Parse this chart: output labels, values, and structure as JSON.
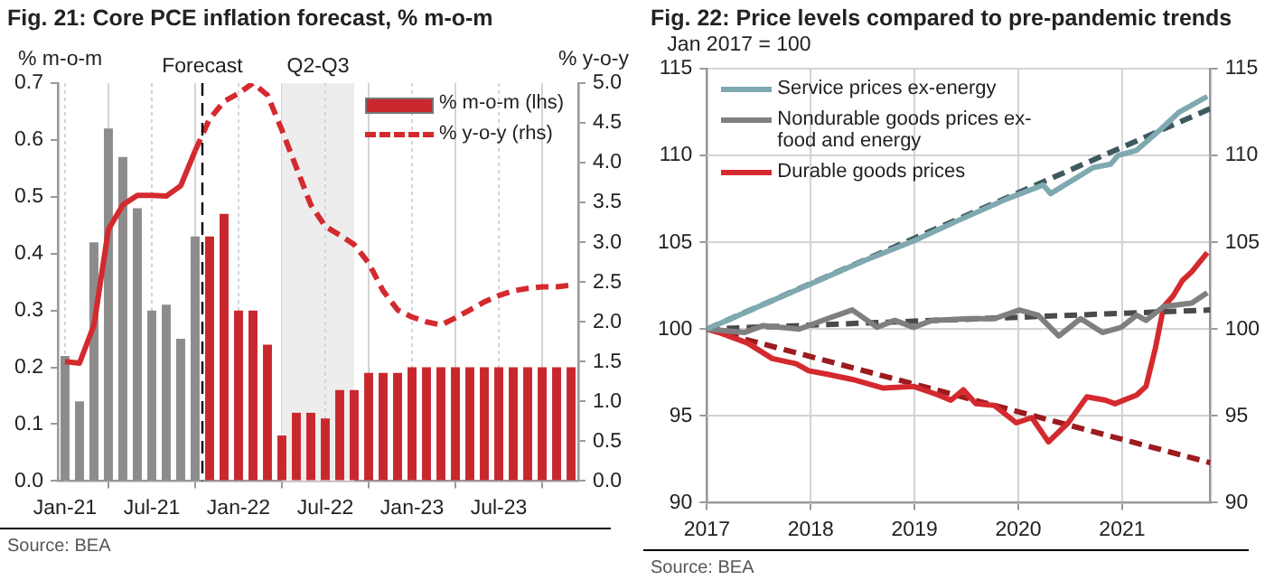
{
  "chart_data": [
    {
      "type": "bar",
      "title": "Fig. 21: Core PCE inflation forecast, % m-o-m",
      "ylabel": "% m-o-m",
      "y2label": "% y-o-y",
      "x": [
        "2021-01",
        "2021-02",
        "2021-03",
        "2021-04",
        "2021-05",
        "2021-06",
        "2021-07",
        "2021-08",
        "2021-09",
        "2021-10",
        "2021-11",
        "2021-12",
        "2022-01",
        "2022-02",
        "2022-03",
        "2022-04",
        "2022-05",
        "2022-06",
        "2022-07",
        "2022-08",
        "2022-09",
        "2022-10",
        "2022-11",
        "2022-12",
        "2023-01",
        "2023-02",
        "2023-03",
        "2023-04",
        "2023-05",
        "2023-06",
        "2023-07",
        "2023-08",
        "2023-09",
        "2023-10",
        "2023-11",
        "2023-12"
      ],
      "series": [
        {
          "name": "% m-o-m (lhs)",
          "type": "bar",
          "color": "#c8282d",
          "colors": [
            "#8c8c8c",
            "#8c8c8c",
            "#8c8c8c",
            "#8c8c8c",
            "#8c8c8c",
            "#8c8c8c",
            "#8c8c8c",
            "#8c8c8c",
            "#8c8c8c",
            "#8c8c8c",
            "#c8282d",
            "#c8282d",
            "#c8282d",
            "#c8282d",
            "#c8282d",
            "#c8282d",
            "#c8282d",
            "#c8282d",
            "#c8282d",
            "#c8282d",
            "#c8282d",
            "#c8282d",
            "#c8282d",
            "#c8282d",
            "#c8282d",
            "#c8282d",
            "#c8282d",
            "#c8282d",
            "#c8282d",
            "#c8282d",
            "#c8282d",
            "#c8282d",
            "#c8282d",
            "#c8282d",
            "#c8282d",
            "#c8282d"
          ],
          "values": [
            0.22,
            0.14,
            0.42,
            0.62,
            0.57,
            0.48,
            0.3,
            0.31,
            0.25,
            0.43,
            0.43,
            0.47,
            0.3,
            0.3,
            0.24,
            0.08,
            0.12,
            0.12,
            0.11,
            0.16,
            0.16,
            0.19,
            0.19,
            0.19,
            0.2,
            0.2,
            0.2,
            0.2,
            0.2,
            0.2,
            0.2,
            0.2,
            0.2,
            0.2,
            0.2,
            0.2
          ]
        },
        {
          "type": "line",
          "axis": "y2",
          "color": "#d42a2f",
          "line_style": "solid",
          "x": [
            "2021-01",
            "2021-02",
            "2021-03",
            "2021-04",
            "2021-05",
            "2021-06",
            "2021-07",
            "2021-08",
            "2021-09",
            "2021-10"
          ],
          "values": [
            1.5,
            1.48,
            1.96,
            3.16,
            3.47,
            3.59,
            3.59,
            3.58,
            3.71,
            4.15
          ]
        },
        {
          "name": "% y-o-y (rhs)",
          "type": "line",
          "axis": "y2",
          "color": "#d42a2f",
          "line_style": "dashed",
          "x": [
            "2021-10",
            "2021-11",
            "2021-12",
            "2022-01",
            "2022-02",
            "2022-03",
            "2022-04",
            "2022-05",
            "2022-06",
            "2022-07",
            "2022-08",
            "2022-09",
            "2022-10",
            "2022-11",
            "2022-12",
            "2023-01",
            "2023-02",
            "2023-03",
            "2023-04",
            "2023-05",
            "2023-06",
            "2023-07",
            "2023-08",
            "2023-09",
            "2023-10",
            "2023-11",
            "2023-12"
          ],
          "values": [
            4.15,
            4.55,
            4.77,
            4.87,
            5.0,
            4.85,
            4.41,
            3.94,
            3.47,
            3.2,
            3.09,
            2.97,
            2.74,
            2.39,
            2.15,
            2.06,
            2.0,
            1.96,
            2.05,
            2.15,
            2.25,
            2.33,
            2.39,
            2.42,
            2.44,
            2.44,
            2.46
          ]
        }
      ],
      "xlim": [
        "2020-12-16",
        "2023-12-16"
      ],
      "xticks": [
        {
          "value": "2021-01",
          "label": "Jan-21"
        },
        {
          "value": "2021-07",
          "label": "Jul-21"
        },
        {
          "value": "2022-01",
          "label": "Jan-22"
        },
        {
          "value": "2022-07",
          "label": "Jul-22"
        },
        {
          "value": "2023-01",
          "label": "Jan-23"
        },
        {
          "value": "2023-07",
          "label": "Jul-23"
        }
      ],
      "ylim": [
        0,
        0.7
      ],
      "yticks": [
        {
          "value": 0,
          "label": "0.0"
        },
        0.1,
        0.2,
        0.3,
        0.4,
        0.5,
        0.6,
        0.7
      ],
      "y2lim": [
        0,
        5
      ],
      "y2ticks": [
        {
          "value": 0,
          "label": "0.0"
        },
        0.5,
        {
          "value": 1,
          "label": "1.0"
        },
        1.5,
        {
          "value": 2,
          "label": "2.0"
        },
        2.5,
        {
          "value": 3,
          "label": "3.0"
        },
        3.5,
        {
          "value": 4,
          "label": "4.0"
        },
        4.5,
        {
          "value": 5,
          "label": "5.0"
        }
      ],
      "ref_lines": [
        {
          "axis": "x",
          "value": "2021-10-16",
          "label": "Forecast",
          "color": "#000000",
          "line_style": "dashed"
        }
      ],
      "bands": [
        {
          "axis": "x",
          "from": "2022-04",
          "to": "2022-09",
          "label": "Q2-Q3",
          "color": "#ededed"
        }
      ],
      "grid": "x",
      "legend": "top right",
      "annotations": [
        "Source: BEA"
      ]
    },
    {
      "type": "line",
      "title": "Fig. 22: Price levels compared to pre-pandemic trends",
      "ylabel": "Jan 2017 = 100",
      "series": [
        {
          "name": "Service prices ex-energy",
          "color": "#7fa9b0",
          "line_style": "solid",
          "x": [
            2017,
            2017.5,
            2018,
            2018.5,
            2019,
            2019.4,
            2019.89,
            2020.24,
            2020.31,
            2020.72,
            2020.89,
            2020.96,
            2021.14,
            2021.37,
            2021.55,
            2021.82
          ],
          "values": [
            100,
            101.3,
            102.6,
            103.9,
            105.1,
            106.2,
            107.5,
            108.3,
            107.8,
            109.3,
            109.5,
            110.0,
            110.3,
            111.5,
            112.5,
            113.4
          ]
        },
        {
          "color": "#3d5a5e",
          "line_style": "dashed",
          "x": [
            2017,
            2021.85
          ],
          "values": [
            100,
            112.7
          ]
        },
        {
          "name": "Nondurable goods prices ex-food and energy",
          "color": "#7f7f7f",
          "line_style": "solid",
          "x": [
            2017,
            2017.36,
            2017.54,
            2017.89,
            2018.16,
            2018.4,
            2018.64,
            2018.81,
            2018.99,
            2019.17,
            2019.53,
            2019.77,
            2020.01,
            2020.19,
            2020.39,
            2020.6,
            2020.81,
            2020.99,
            2021.14,
            2021.23,
            2021.4,
            2021.67,
            2021.82
          ],
          "values": [
            100,
            99.8,
            100.2,
            100,
            100.6,
            101.1,
            100.1,
            100.5,
            100.1,
            100.5,
            100.6,
            100.6,
            101.1,
            100.8,
            99.6,
            100.6,
            99.8,
            100.1,
            100.8,
            100.5,
            101.3,
            101.5,
            102.1
          ]
        },
        {
          "color": "#4a4a4a",
          "line_style": "dashed",
          "x": [
            2017,
            2021.85
          ],
          "values": [
            100,
            101.1
          ]
        },
        {
          "name": "Durable goods prices",
          "color": "#d42a2f",
          "line_style": "solid",
          "x": [
            2017,
            2017.12,
            2017.39,
            2017.63,
            2017.86,
            2017.98,
            2018.16,
            2018.4,
            2018.7,
            2018.99,
            2019.23,
            2019.35,
            2019.47,
            2019.59,
            2019.77,
            2019.98,
            2020.13,
            2020.29,
            2020.48,
            2020.66,
            2020.84,
            2020.93,
            2021.14,
            2021.23,
            2021.32,
            2021.4,
            2021.49,
            2021.58,
            2021.67,
            2021.82
          ],
          "values": [
            100,
            99.8,
            99.2,
            98.3,
            98,
            97.6,
            97.4,
            97.1,
            96.6,
            96.7,
            96.2,
            95.9,
            96.5,
            95.7,
            95.6,
            94.6,
            94.9,
            93.5,
            94.6,
            96.1,
            95.9,
            95.7,
            96.2,
            96.7,
            98.9,
            101.3,
            101.9,
            102.8,
            103.3,
            104.4
          ]
        },
        {
          "color": "#9b1b1e",
          "line_style": "dashed",
          "x": [
            2017,
            2021.85
          ],
          "values": [
            100,
            92.3
          ]
        }
      ],
      "xlim": [
        2017,
        2021.85
      ],
      "xticks": [
        2017,
        2018,
        2019,
        2020,
        2021
      ],
      "ylim": [
        90,
        115
      ],
      "yticks": [
        90,
        95,
        100,
        105,
        110,
        115
      ],
      "y2lim": [
        90,
        115
      ],
      "y2ticks": [
        90,
        95,
        100,
        105,
        110,
        115
      ],
      "grid": true,
      "legend": "top left",
      "annotations": [
        "Source: BEA"
      ]
    }
  ]
}
